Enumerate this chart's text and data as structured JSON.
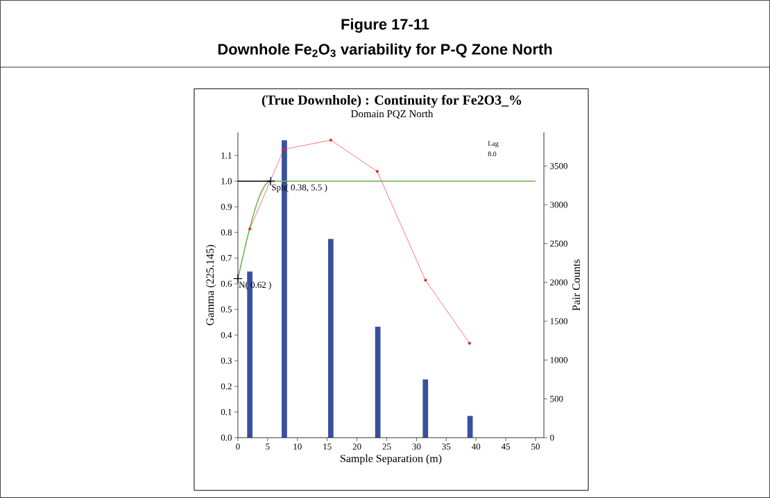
{
  "chart_data": {
    "type": "line",
    "title": "(True Downhole) :  Continuity for Fe2O3_%",
    "subtitle": "Domain PQZ North",
    "xlabel": "Sample Separation (m)",
    "ylabel": "Gamma (225.145)",
    "y2label": "Pair Counts",
    "annotations": [
      {
        "text": "N( 0.62 )",
        "x": 0,
        "y": 0.62
      },
      {
        "text": "Sph( 0.38, 5.5 )",
        "x": 5.5,
        "y": 1.0
      },
      "Lag",
      "8.0",
      "Figure 17-11",
      "Downhole Fe$_{2}$O$_{3}$ variability for P-Q Zone North"
    ],
    "xlim": [
      0,
      51.4
    ],
    "ylim": [
      0,
      1.19
    ],
    "y2lim": [
      0,
      3932
    ],
    "xticks": [
      0,
      5,
      10,
      15,
      20,
      25,
      30,
      35,
      40,
      45,
      50
    ],
    "yticks": [
      {
        "value": 0,
        "label": "0.0"
      },
      0.1,
      0.2,
      0.3,
      0.4,
      0.5,
      0.6,
      0.7,
      0.8,
      0.9,
      {
        "value": 1,
        "label": "1.0"
      },
      1.1
    ],
    "y2ticks": [
      0,
      500,
      1000,
      1500,
      2000,
      2500,
      3000,
      3500
    ],
    "series": [
      {
        "type": "bar",
        "axis": "y2",
        "color": "#3a4fa0",
        "x": [
          2.0,
          7.8,
          15.6,
          23.5,
          31.5,
          39.0
        ],
        "values": [
          2140,
          3830,
          2560,
          1430,
          750,
          280
        ]
      },
      {
        "color": "#ee2222",
        "marker": "circle",
        "x": [
          2.0,
          7.7,
          15.6,
          23.4,
          31.5,
          38.9
        ],
        "values": [
          0.814,
          1.124,
          1.16,
          1.038,
          0.614,
          0.368
        ]
      },
      {
        "color": "#6ab04c",
        "x": [
          0,
          0.5,
          1,
          1.5,
          2,
          2.5,
          3,
          3.5,
          4,
          4.5,
          5,
          5.5,
          50
        ],
        "values": [
          0.62,
          0.672,
          0.722,
          0.772,
          0.818,
          0.861,
          0.9,
          0.934,
          0.961,
          0.982,
          0.995,
          1.0,
          1.0
        ]
      },
      {
        "color": "#000000",
        "x": [
          0,
          5.5
        ],
        "values": [
          1.0,
          1.0
        ]
      },
      {
        "type": "scatter",
        "color": "#000000",
        "marker": "cross",
        "x": [
          0,
          5.5
        ],
        "values": [
          0.62,
          1.0
        ]
      }
    ]
  }
}
